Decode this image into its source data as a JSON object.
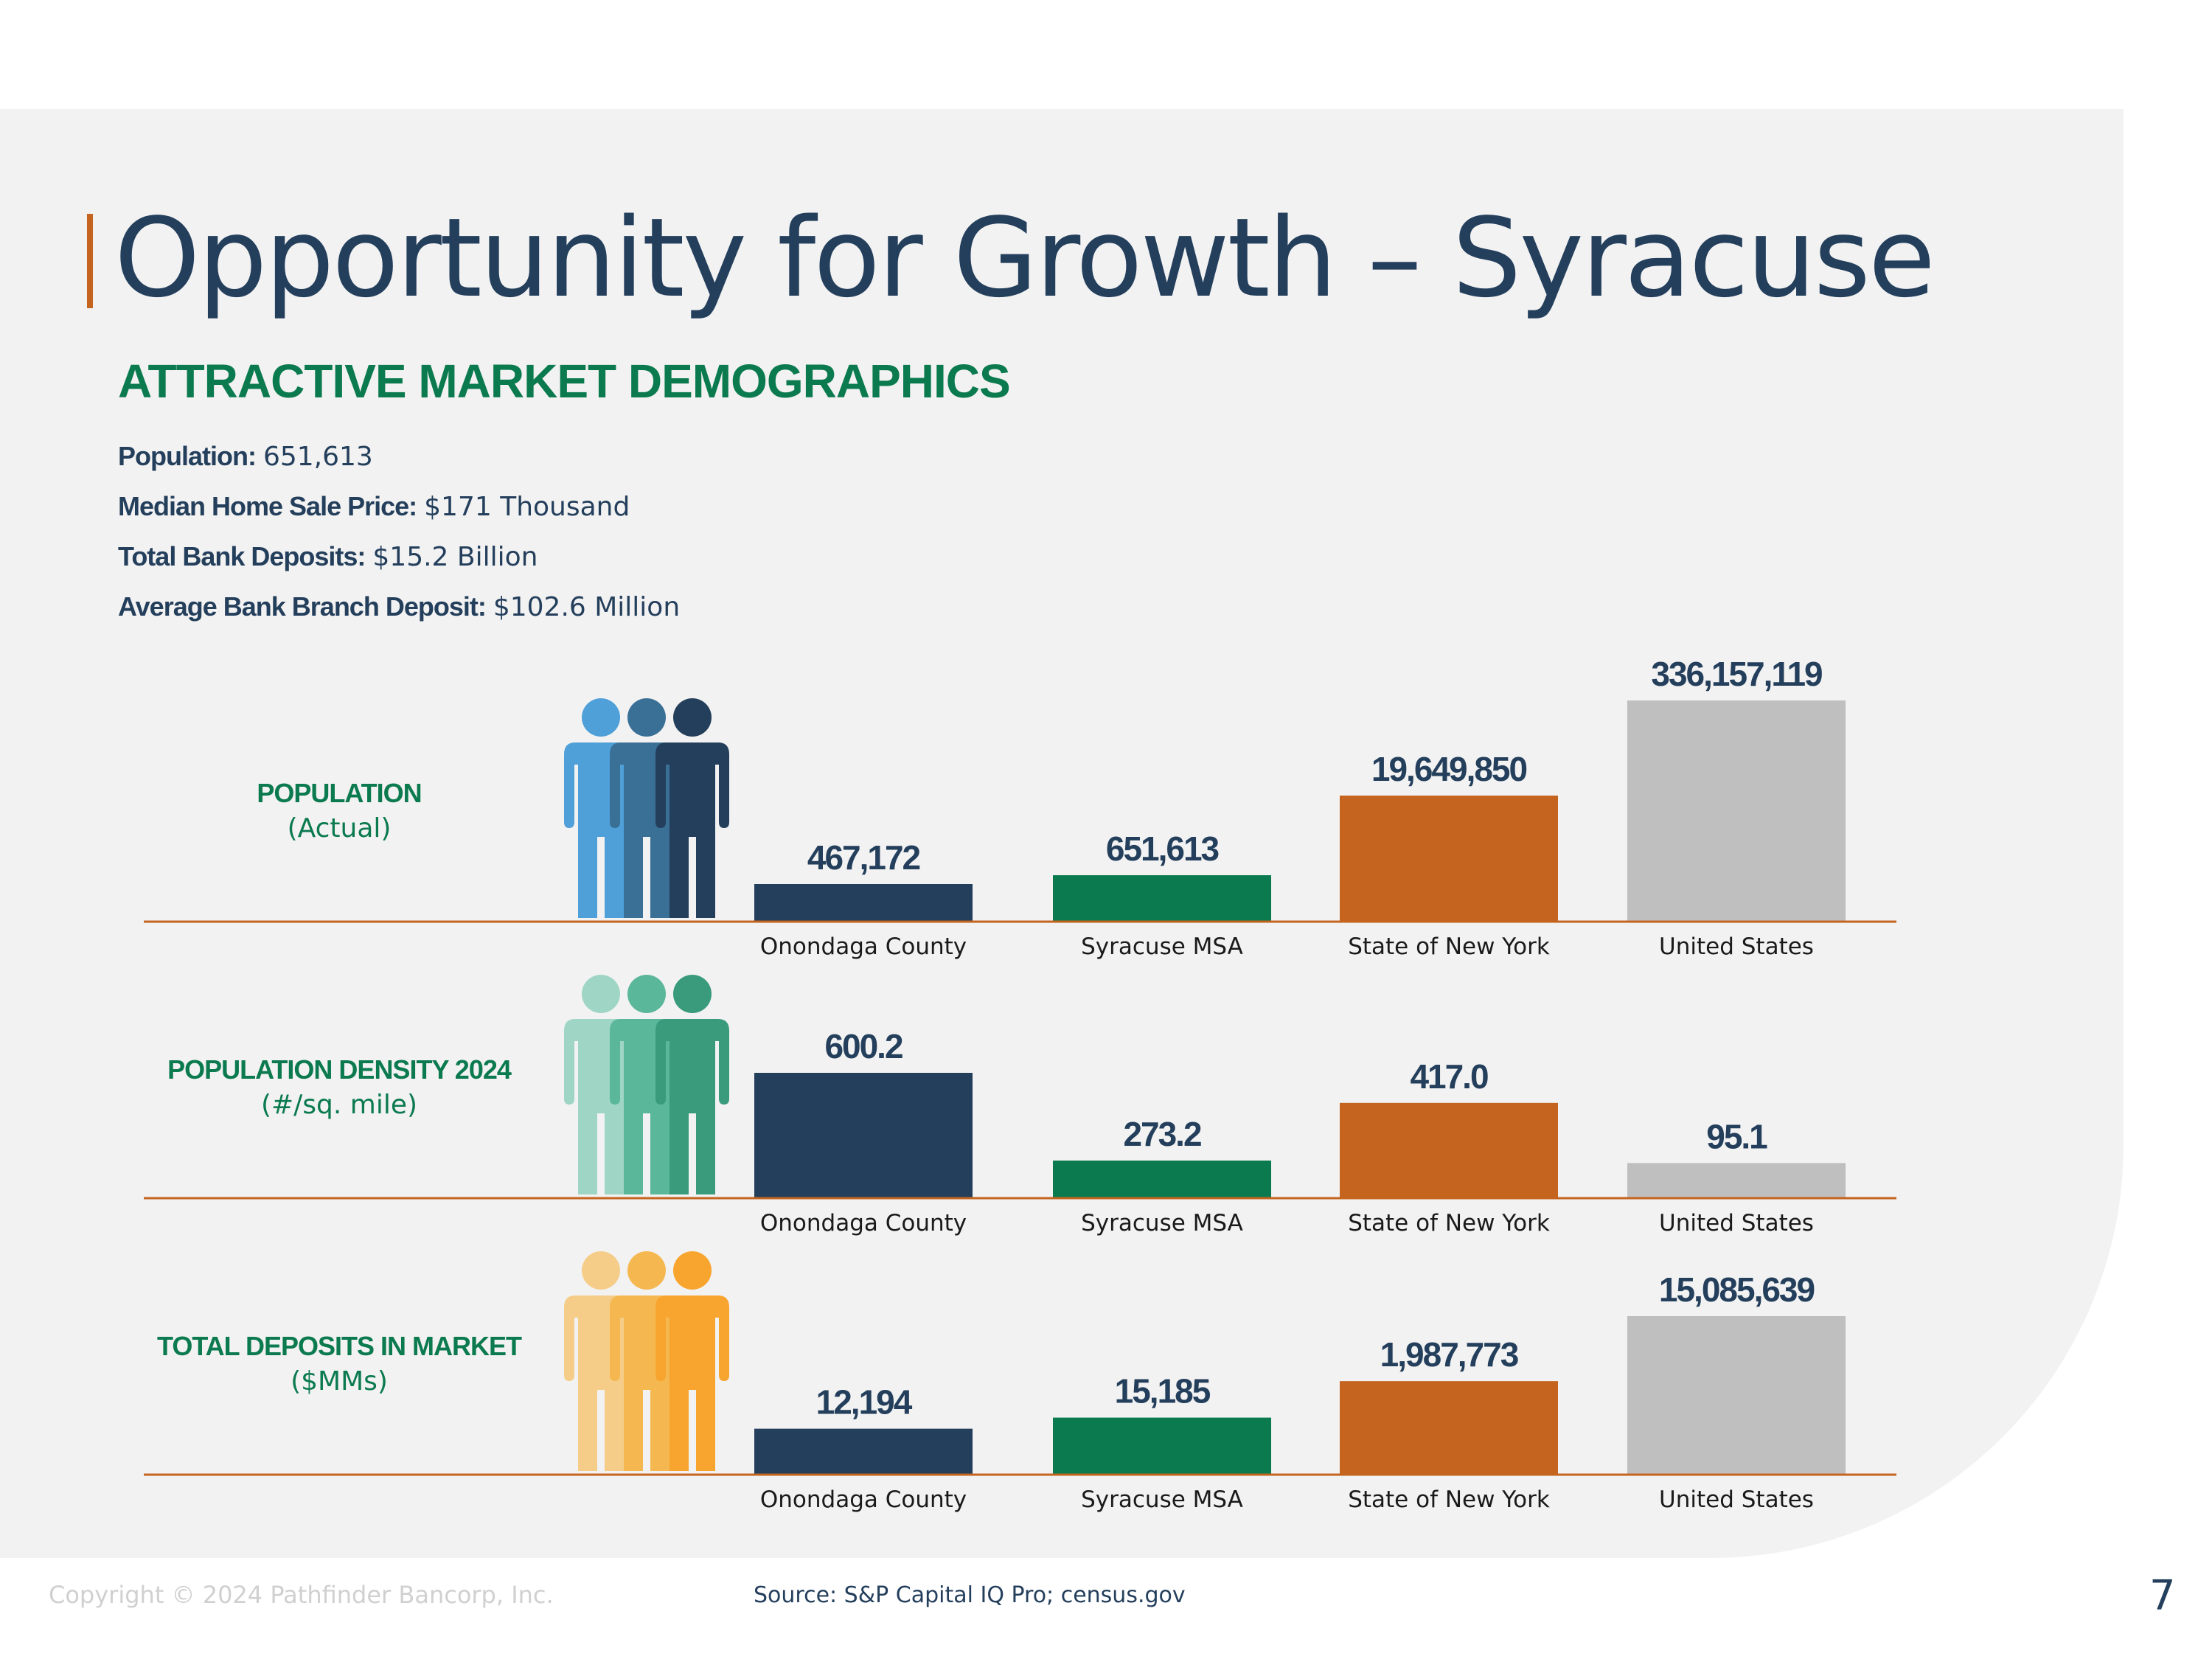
{
  "slide": {
    "title": "Opportunity for Growth – Syracuse",
    "subtitle": "ATTRACTIVE MARKET DEMOGRAPHICS",
    "page_number": "7",
    "copyright": "Copyright © 2024 Pathfinder Bancorp, Inc.",
    "source": "Source: S&P Capital IQ Pro; census.gov"
  },
  "stats": [
    {
      "label": "Population:",
      "value": "651,613"
    },
    {
      "label": "Median Home Sale Price:",
      "value": "$171 Thousand"
    },
    {
      "label": "Total Bank Deposits:",
      "value": "$15.2 Billion"
    },
    {
      "label": "Average Bank Branch Deposit:",
      "value": "$102.6 Million"
    }
  ],
  "colors": {
    "navy": "#243f5c",
    "green": "#0b7a4f",
    "orange": "#c4641f",
    "gray": "#bfbfbf",
    "baseline": "#c4641f",
    "people_population": [
      "#4fa0d9",
      "#3a6f96",
      "#243f5c"
    ],
    "people_density": [
      "#9ed5c4",
      "#5bb79a",
      "#3a9a7c"
    ],
    "people_deposits": [
      "#f5cd88",
      "#f5b851",
      "#f8a530"
    ]
  },
  "chart_data": [
    {
      "type": "bar",
      "title": "POPULATION",
      "subtitle": "(Actual)",
      "icon": "people-population-icon",
      "categories": [
        "Onondaga County",
        "Syracuse MSA",
        "State of New York",
        "United States"
      ],
      "values": [
        467172,
        651613,
        19649850,
        336157119
      ],
      "value_labels": [
        "467,172",
        "651,613",
        "19,649,850",
        "336,157,119"
      ],
      "bar_heights_rel": [
        0.17,
        0.21,
        0.57,
        1.0
      ]
    },
    {
      "type": "bar",
      "title": "POPULATION DENSITY 2024",
      "subtitle": "(#/sq. mile)",
      "icon": "people-density-icon",
      "categories": [
        "Onondaga County",
        "Syracuse MSA",
        "State of New York",
        "United States"
      ],
      "values": [
        600.2,
        273.2,
        417.0,
        95.1
      ],
      "value_labels": [
        "600.2",
        "273.2",
        "417.0",
        "95.1"
      ],
      "bar_heights_rel": [
        1.0,
        0.3,
        0.76,
        0.28
      ]
    },
    {
      "type": "bar",
      "title": "TOTAL DEPOSITS IN MARKET",
      "subtitle": "($MMs)",
      "icon": "people-deposits-icon",
      "categories": [
        "Onondaga County",
        "Syracuse MSA",
        "State of New York",
        "United States"
      ],
      "values": [
        12194,
        15185,
        1987773,
        15085639
      ],
      "value_labels": [
        "12,194",
        "15,185",
        "1,987,773",
        "15,085,639"
      ],
      "bar_heights_rel": [
        0.29,
        0.36,
        0.59,
        1.0
      ]
    }
  ]
}
